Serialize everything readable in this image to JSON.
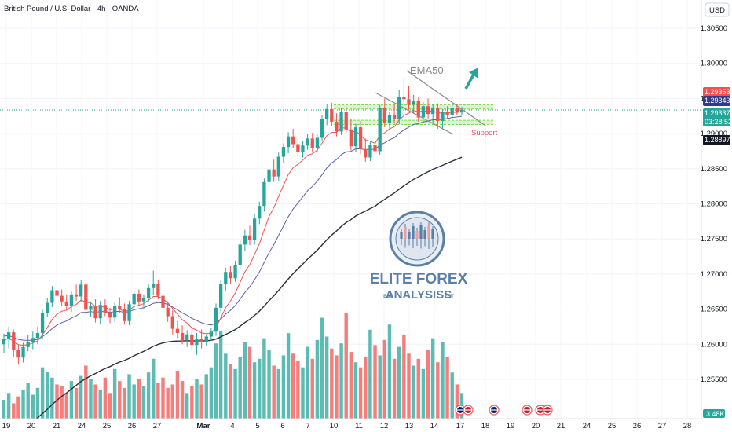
{
  "header": {
    "title": "British Pound / U.S. Dollar · 4h · OANDA",
    "currency_button": "USD"
  },
  "colors": {
    "up": "#26a69a",
    "down": "#ef5350",
    "ema_fast": "#ef5350",
    "ema_mid": "#5b5fa8",
    "ema_slow": "#2a2e39",
    "zone": "#7ed957",
    "trend": "#8a8a8a",
    "arrow": "#26a69a",
    "tag_red": "#ef5350",
    "tag_navy": "#2f3a8a",
    "tag_teal": "#26a69a",
    "tag_dark": "#131722",
    "logo": "#5b7fa6"
  },
  "chart_data": {
    "type": "candlestick",
    "symbol": "GBPUSD",
    "timeframe": "4h",
    "ylim": [
      1.2445,
      1.3068
    ],
    "x_tick_labels": [
      "19",
      "20",
      "21",
      "24",
      "25",
      "26",
      "27",
      "Mar",
      "4",
      "5",
      "6",
      "7",
      "10",
      "11",
      "12",
      "13",
      "14",
      "17",
      "18",
      "19",
      "20",
      "21",
      "24",
      "25",
      "26",
      "27",
      "28"
    ],
    "y_tick_labels": [
      "1.30500",
      "1.30000",
      "1.29500",
      "1.29000",
      "1.28500",
      "1.28000",
      "1.27500",
      "1.27000",
      "1.26500",
      "1.26000",
      "1.25500"
    ],
    "y_tick_values": [
      1.305,
      1.3,
      1.295,
      1.29,
      1.285,
      1.28,
      1.275,
      1.27,
      1.265,
      1.26,
      1.255
    ],
    "candles": [
      [
        1.26,
        1.2615,
        1.2588,
        1.2608
      ],
      [
        1.2608,
        1.2625,
        1.2594,
        1.2617
      ],
      [
        1.2617,
        1.2621,
        1.2582,
        1.2592
      ],
      [
        1.2592,
        1.2599,
        1.2571,
        1.2581
      ],
      [
        1.2581,
        1.2602,
        1.2574,
        1.2596
      ],
      [
        1.2596,
        1.2613,
        1.259,
        1.2603
      ],
      [
        1.2603,
        1.2618,
        1.2593,
        1.2609
      ],
      [
        1.2609,
        1.2625,
        1.26,
        1.2616
      ],
      [
        1.2616,
        1.2649,
        1.2608,
        1.2644
      ],
      [
        1.2644,
        1.2666,
        1.2639,
        1.2659
      ],
      [
        1.2659,
        1.2683,
        1.2653,
        1.2677
      ],
      [
        1.2677,
        1.2688,
        1.2663,
        1.2669
      ],
      [
        1.2669,
        1.2678,
        1.2655,
        1.2661
      ],
      [
        1.2661,
        1.2671,
        1.2649,
        1.2654
      ],
      [
        1.2654,
        1.2676,
        1.2646,
        1.2671
      ],
      [
        1.2671,
        1.2685,
        1.2662,
        1.2668
      ],
      [
        1.2668,
        1.2691,
        1.266,
        1.2685
      ],
      [
        1.2685,
        1.2688,
        1.2642,
        1.2649
      ],
      [
        1.2649,
        1.2661,
        1.2639,
        1.2655
      ],
      [
        1.2655,
        1.2664,
        1.2631,
        1.2637
      ],
      [
        1.2637,
        1.2662,
        1.2629,
        1.2656
      ],
      [
        1.2656,
        1.2664,
        1.264,
        1.2645
      ],
      [
        1.2645,
        1.2652,
        1.263,
        1.2638
      ],
      [
        1.2638,
        1.266,
        1.2632,
        1.2654
      ],
      [
        1.2654,
        1.2667,
        1.2645,
        1.265
      ],
      [
        1.265,
        1.2658,
        1.2628,
        1.2633
      ],
      [
        1.2633,
        1.2662,
        1.2627,
        1.2657
      ],
      [
        1.2657,
        1.2676,
        1.2651,
        1.2672
      ],
      [
        1.2672,
        1.2678,
        1.2655,
        1.2661
      ],
      [
        1.2661,
        1.2671,
        1.265,
        1.2666
      ],
      [
        1.2666,
        1.2685,
        1.266,
        1.268
      ],
      [
        1.268,
        1.2705,
        1.267,
        1.2686
      ],
      [
        1.2686,
        1.2691,
        1.2664,
        1.2669
      ],
      [
        1.2669,
        1.2676,
        1.2646,
        1.2652
      ],
      [
        1.2652,
        1.2661,
        1.2632,
        1.264
      ],
      [
        1.264,
        1.2649,
        1.2614,
        1.2622
      ],
      [
        1.2622,
        1.2633,
        1.2609,
        1.2616
      ],
      [
        1.2616,
        1.2627,
        1.26,
        1.2606
      ],
      [
        1.2606,
        1.262,
        1.2596,
        1.2614
      ],
      [
        1.2614,
        1.2622,
        1.2592,
        1.2599
      ],
      [
        1.2599,
        1.2616,
        1.2585,
        1.2608
      ],
      [
        1.2608,
        1.2621,
        1.2594,
        1.2603
      ],
      [
        1.2603,
        1.2614,
        1.2597,
        1.2611
      ],
      [
        1.2611,
        1.2623,
        1.2605,
        1.2618
      ],
      [
        1.2618,
        1.2658,
        1.2612,
        1.2652
      ],
      [
        1.2652,
        1.2692,
        1.2645,
        1.2686
      ],
      [
        1.2686,
        1.2709,
        1.2675,
        1.2703
      ],
      [
        1.2703,
        1.2711,
        1.2686,
        1.2694
      ],
      [
        1.2694,
        1.2719,
        1.2689,
        1.2713
      ],
      [
        1.2713,
        1.2748,
        1.2706,
        1.2742
      ],
      [
        1.2742,
        1.2763,
        1.2733,
        1.2755
      ],
      [
        1.2755,
        1.2769,
        1.2741,
        1.2749
      ],
      [
        1.2749,
        1.2785,
        1.2742,
        1.2779
      ],
      [
        1.2779,
        1.2803,
        1.2771,
        1.2797
      ],
      [
        1.2797,
        1.2836,
        1.2789,
        1.2831
      ],
      [
        1.2831,
        1.2855,
        1.2822,
        1.2849
      ],
      [
        1.2849,
        1.2863,
        1.2831,
        1.2839
      ],
      [
        1.2839,
        1.2873,
        1.2833,
        1.2867
      ],
      [
        1.2867,
        1.2886,
        1.2858,
        1.2881
      ],
      [
        1.2881,
        1.2902,
        1.2872,
        1.2896
      ],
      [
        1.2896,
        1.2907,
        1.2879,
        1.2885
      ],
      [
        1.2885,
        1.2893,
        1.2868,
        1.2874
      ],
      [
        1.2874,
        1.2889,
        1.2866,
        1.2883
      ],
      [
        1.2883,
        1.2899,
        1.2877,
        1.2893
      ],
      [
        1.2893,
        1.2901,
        1.2873,
        1.2879
      ],
      [
        1.2879,
        1.2899,
        1.2874,
        1.2894
      ],
      [
        1.2894,
        1.2926,
        1.2889,
        1.2921
      ],
      [
        1.2921,
        1.2942,
        1.2912,
        1.2935
      ],
      [
        1.2935,
        1.2944,
        1.2911,
        1.2917
      ],
      [
        1.2917,
        1.2929,
        1.2896,
        1.2903
      ],
      [
        1.2903,
        1.2936,
        1.2898,
        1.2931
      ],
      [
        1.2931,
        1.2938,
        1.2901,
        1.2906
      ],
      [
        1.2906,
        1.2921,
        1.2876,
        1.2882
      ],
      [
        1.2882,
        1.2914,
        1.2874,
        1.2909
      ],
      [
        1.2909,
        1.2918,
        1.2871,
        1.2878
      ],
      [
        1.2878,
        1.2893,
        1.286,
        1.2866
      ],
      [
        1.2866,
        1.2889,
        1.2861,
        1.2884
      ],
      [
        1.2884,
        1.2897,
        1.2869,
        1.2875
      ],
      [
        1.2875,
        1.2941,
        1.287,
        1.2936
      ],
      [
        1.2936,
        1.295,
        1.2909,
        1.2915
      ],
      [
        1.2915,
        1.2931,
        1.2907,
        1.2926
      ],
      [
        1.2926,
        1.2941,
        1.2914,
        1.2921
      ],
      [
        1.2921,
        1.2962,
        1.2913,
        1.2952
      ],
      [
        1.2952,
        1.2978,
        1.2942,
        1.2949
      ],
      [
        1.2949,
        1.2968,
        1.2934,
        1.2941
      ],
      [
        1.2941,
        1.2955,
        1.2928,
        1.2946
      ],
      [
        1.2946,
        1.2952,
        1.2917,
        1.2923
      ],
      [
        1.2923,
        1.2945,
        1.2915,
        1.2939
      ],
      [
        1.2939,
        1.295,
        1.2921,
        1.2928
      ],
      [
        1.2928,
        1.2942,
        1.2914,
        1.2936
      ],
      [
        1.2936,
        1.2943,
        1.2907,
        1.2918
      ],
      [
        1.2918,
        1.2935,
        1.2906,
        1.2931
      ],
      [
        1.2931,
        1.2939,
        1.2922,
        1.2926
      ],
      [
        1.2926,
        1.2941,
        1.2921,
        1.2936
      ],
      [
        1.2936,
        1.2942,
        1.2926,
        1.293
      ],
      [
        1.293,
        1.2938,
        1.2926,
        1.2934
      ]
    ],
    "volume_direction_note": "volume bars follow candle direction",
    "volumes": [
      22,
      30,
      18,
      26,
      34,
      42,
      28,
      36,
      60,
      55,
      48,
      40,
      38,
      30,
      44,
      36,
      50,
      62,
      46,
      40,
      34,
      48,
      30,
      58,
      44,
      36,
      52,
      40,
      46,
      38,
      54,
      70,
      42,
      48,
      36,
      40,
      56,
      44,
      30,
      38,
      46,
      40,
      52,
      60,
      88,
      102,
      76,
      64,
      58,
      72,
      90,
      84,
      66,
      70,
      94,
      80,
      62,
      58,
      74,
      100,
      76,
      68,
      60,
      84,
      70,
      92,
      118,
      96,
      82,
      74,
      88,
      124,
      78,
      66,
      60,
      72,
      104,
      86,
      74,
      92,
      110,
      70,
      84,
      98,
      76,
      62,
      70,
      58,
      80,
      94,
      66,
      90,
      72,
      54,
      40,
      30
    ],
    "ema50_path_note": "slow moving average",
    "indicators": [
      {
        "name": "EMA50",
        "color": "#2a2e39"
      }
    ],
    "annotations": {
      "ema_label": "EMA50",
      "support_label": "Support",
      "resistance_zone": [
        1.2935,
        1.2941
      ],
      "support_zone": [
        1.2913,
        1.2919
      ]
    },
    "price_tags": [
      {
        "label": "1.29353",
        "value": 1.29353,
        "color": "#ef5350"
      },
      {
        "label": "1.29343",
        "value": 1.29343,
        "color": "#2f3a8a"
      },
      {
        "label": "1.29337",
        "sub": "03:28:52",
        "value": 1.29337,
        "color": "#26a69a"
      },
      {
        "label": "1.28897",
        "value": 1.28897,
        "color": "#131722"
      }
    ],
    "volume_tag": "3.48K"
  },
  "watermark": {
    "line1": "ELITE FOREX",
    "line2": "ANALYSISS",
    "left_small": "EST",
    "right_small": "EST"
  }
}
